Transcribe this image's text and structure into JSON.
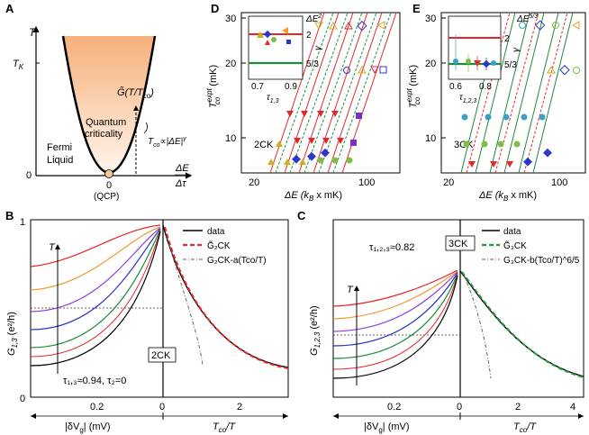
{
  "panels": {
    "A": {
      "letter": "A",
      "y_axis_label": "T",
      "y_tick_tk": "T",
      "y_tick_tk_sub": "K",
      "y_tick_zero": "0",
      "x_axis_label_top": "ΔE",
      "x_axis_label_bottom": "Δτ",
      "x_tick_zero": "0",
      "x_tick_qcp": "(QCP)",
      "region_fermi_1": "Fermi",
      "region_fermi_2": "Liquid",
      "region_qc_1": "Quantum",
      "region_qc_2": "criticality",
      "g_label": "G̃(T/T",
      "g_label_sub": "co",
      "g_label_end": ")",
      "tco_label": "T",
      "tco_label_sub": "co",
      "tco_label_rest": "∝|ΔE|",
      "tco_label_sup": "γ"
    },
    "D": {
      "letter": "D",
      "y_label_main": "T",
      "y_label_sup": "expt",
      "y_label_sub": "co",
      "y_label_unit": "(mK)",
      "y_ticks": [
        "30",
        "20",
        "10"
      ],
      "x_ticks": [
        "20",
        "100"
      ],
      "x_label": "ΔE (k",
      "x_label_sub": "B",
      "x_label_end": " x mK)",
      "tag": "2CK",
      "inset_x_ticks": [
        "0.7",
        "0.9"
      ],
      "inset_x_label": "τ",
      "inset_x_label_sub": "1,3",
      "inset_y_ticks": [
        "2",
        "5/3"
      ],
      "inset_y_label": "γ",
      "inset_annotation": "ΔE",
      "inset_annotation_sup": "2"
    },
    "E": {
      "letter": "E",
      "y_label_main": "T",
      "y_label_sup": "expt",
      "y_label_sub": "co",
      "y_label_unit": "(mK)",
      "y_ticks": [
        "30",
        "20",
        "10"
      ],
      "x_ticks": [
        "20",
        "100"
      ],
      "x_label": "ΔE (k",
      "x_label_sub": "B",
      "x_label_end": " x mK)",
      "tag": "3CK",
      "inset_x_ticks": [
        "0.6",
        "0.8"
      ],
      "inset_x_label": "τ",
      "inset_x_label_sub": "1,2,3",
      "inset_y_ticks": [
        "2",
        "5/3"
      ],
      "inset_y_label": "γ",
      "inset_annotation": "ΔE",
      "inset_annotation_sup": "5/3"
    },
    "B": {
      "letter": "B",
      "y_label": "G",
      "y_label_sub": "1,3",
      "y_label_unit": "(e²/h)",
      "y_tick_top": "1",
      "y_tick_bottom": "0",
      "x_ticks_left": [
        "0.2"
      ],
      "x_ticks_right": [
        "0",
        "2"
      ],
      "x_label_left": "|δV",
      "x_label_left_sub": "g",
      "x_label_left_end": "| (mV)",
      "x_label_right": "T",
      "x_label_right_sub": "co",
      "x_label_right_end": "/T",
      "T_arrow_label": "T",
      "tag": "2CK",
      "param_note": "τ₁,₃≈0.94, τ₂=0",
      "legend": [
        {
          "label": "data",
          "color": "#000000",
          "style": "solid"
        },
        {
          "label": "G̃₂CK",
          "color": "#e8252a",
          "style": "dashed"
        },
        {
          "label": "G₂CK-a(Tco/T)",
          "color": "#666666",
          "style": "dashdot"
        }
      ]
    },
    "C": {
      "letter": "C",
      "y_label": "G",
      "y_label_sub": "1,2,3",
      "y_label_unit": "(e²/h)",
      "x_ticks_left": [
        "0.2"
      ],
      "x_ticks_right": [
        "0",
        "2",
        "4"
      ],
      "x_label_left": "|δV",
      "x_label_left_sub": "g",
      "x_label_left_end": "| (mV)",
      "x_label_right": "T",
      "x_label_right_sub": "co",
      "x_label_right_end": "/T",
      "T_arrow_label": "T",
      "tag": "3CK",
      "param_note": "τ₁,₂,₃≈0.82",
      "legend": [
        {
          "label": "data",
          "color": "#000000",
          "style": "solid"
        },
        {
          "label": "G̃₃CK",
          "color": "#1f9a3a",
          "style": "dashed"
        },
        {
          "label": "G₃CK-b(Tco/T)^6/5",
          "color": "#666666",
          "style": "dashdot"
        }
      ]
    }
  },
  "colors": {
    "red": "#e8252a",
    "orange": "#f39a2b",
    "yellow": "#c8b21e",
    "purple": "#8b3fd6",
    "blue": "#2a37c8",
    "green": "#1f8a3a",
    "darkgreen": "#0b6a2a",
    "black": "#000000"
  }
}
